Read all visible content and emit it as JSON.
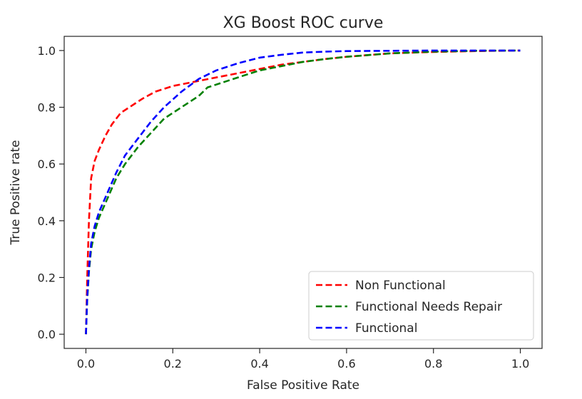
{
  "chart_data": {
    "type": "line",
    "title": "XG Boost ROC curve",
    "xlabel": "False Positive Rate",
    "ylabel": "True Positive rate",
    "xlim": [
      -0.05,
      1.05
    ],
    "ylim": [
      -0.05,
      1.05
    ],
    "xticks": [
      "0.0",
      "0.2",
      "0.4",
      "0.6",
      "0.8",
      "1.0"
    ],
    "yticks": [
      "0.0",
      "0.2",
      "0.4",
      "0.6",
      "0.8",
      "1.0"
    ],
    "grid": false,
    "legend_position": "lower-right",
    "series": [
      {
        "name": "Non Functional",
        "color": "#ff0000",
        "style": "dashed",
        "x": [
          0.0,
          0.003,
          0.007,
          0.012,
          0.02,
          0.03,
          0.045,
          0.06,
          0.08,
          0.1,
          0.13,
          0.16,
          0.2,
          0.25,
          0.3,
          0.35,
          0.4,
          0.45,
          0.5,
          0.55,
          0.6,
          0.7,
          0.8,
          0.9,
          1.0
        ],
        "y": [
          0.0,
          0.2,
          0.4,
          0.55,
          0.61,
          0.65,
          0.7,
          0.74,
          0.78,
          0.8,
          0.83,
          0.855,
          0.875,
          0.89,
          0.905,
          0.92,
          0.935,
          0.95,
          0.96,
          0.97,
          0.978,
          0.99,
          0.995,
          0.998,
          1.0
        ]
      },
      {
        "name": "Functional Needs Repair",
        "color": "#008000",
        "style": "dashed",
        "x": [
          0.0,
          0.003,
          0.007,
          0.012,
          0.02,
          0.03,
          0.05,
          0.07,
          0.09,
          0.12,
          0.15,
          0.18,
          0.22,
          0.26,
          0.28,
          0.32,
          0.36,
          0.4,
          0.45,
          0.5,
          0.55,
          0.6,
          0.7,
          0.8,
          0.9,
          1.0
        ],
        "y": [
          0.0,
          0.12,
          0.22,
          0.3,
          0.36,
          0.41,
          0.48,
          0.55,
          0.6,
          0.66,
          0.71,
          0.76,
          0.8,
          0.84,
          0.87,
          0.89,
          0.91,
          0.93,
          0.945,
          0.96,
          0.97,
          0.978,
          0.99,
          0.996,
          0.999,
          1.0
        ]
      },
      {
        "name": "Functional",
        "color": "#0000ff",
        "style": "dashed",
        "x": [
          0.0,
          0.003,
          0.007,
          0.012,
          0.02,
          0.03,
          0.05,
          0.07,
          0.09,
          0.12,
          0.15,
          0.18,
          0.22,
          0.26,
          0.3,
          0.35,
          0.4,
          0.45,
          0.5,
          0.55,
          0.6,
          0.7,
          0.8,
          0.9,
          1.0
        ],
        "y": [
          0.0,
          0.13,
          0.23,
          0.32,
          0.38,
          0.43,
          0.5,
          0.57,
          0.63,
          0.69,
          0.75,
          0.8,
          0.855,
          0.9,
          0.93,
          0.955,
          0.975,
          0.985,
          0.993,
          0.996,
          0.998,
          0.999,
          1.0,
          1.0,
          1.0
        ]
      }
    ]
  }
}
